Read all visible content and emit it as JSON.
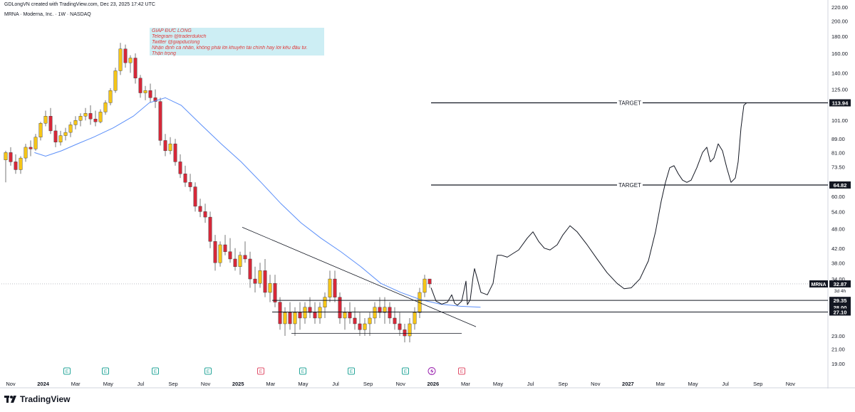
{
  "header": {
    "credit": "GDLongVN created with TradingView.com, Dec 23, 2025 17:42 UTC",
    "symbol_line": "MRNA · Moderna, Inc. · 1W · NASDAQ",
    "brand": "TradingView"
  },
  "annotation": {
    "lines": [
      "GIÁP ĐỨC LONG",
      "Telegram @traderdukich",
      "Twitter @giapduclong",
      "Nhận định cá nhân, không phải lời khuyên tài chính hay lời kêu đầu tư.",
      "Thận trọng"
    ]
  },
  "chart_data": {
    "type": "candlestick",
    "symbol": "MRNA",
    "interval": "1W",
    "y_scale": "log",
    "ylim": [
      17.5,
      222
    ],
    "y_ticks": [
      "220.00",
      "200.00",
      "180.00",
      "160.00",
      "140.00",
      "125.00",
      "113.94",
      "101.00",
      "89.00",
      "81.00",
      "73.50",
      "64.82",
      "60.00",
      "54.00",
      "48.00",
      "42.00",
      "38.00",
      "34.00",
      "32.87",
      "29.35",
      "28.00",
      "27.10",
      "23.00",
      "21.00",
      "19.00"
    ],
    "x_ticks": [
      "Nov",
      "2024",
      "Mar",
      "May",
      "Jul",
      "Sep",
      "Nov",
      "2025",
      "Mar",
      "May",
      "Jul",
      "Sep",
      "Nov",
      "2026",
      "Mar",
      "May",
      "Jul",
      "Sep",
      "Nov",
      "2027",
      "Mar",
      "May",
      "Jul",
      "Sep",
      "Nov"
    ],
    "colors": {
      "up": "#f5c518",
      "down": "#d62839",
      "ma": "#5b8ff9",
      "line": "#131722"
    },
    "price_labels": [
      {
        "label": "MRNA",
        "value": 32.87,
        "sub": "3d 4h"
      },
      {
        "label": "",
        "value": 113.94
      },
      {
        "label": "",
        "value": 64.82
      },
      {
        "label": "",
        "value": 29.35
      },
      {
        "label": "",
        "value": 28.0
      },
      {
        "label": "",
        "value": 27.1
      }
    ],
    "targets": [
      {
        "label": "TARGET",
        "value": 113.94
      },
      {
        "label": "TARGET",
        "value": 64.82
      }
    ],
    "levels": [
      29.35,
      27.1
    ],
    "earnings_markers": [
      "E",
      "E",
      "E",
      "E",
      "E",
      "E",
      "E",
      "E",
      "E"
    ],
    "candles": [
      [
        77,
        82,
        66,
        81
      ],
      [
        81,
        84,
        74,
        76
      ],
      [
        76,
        80,
        70,
        72
      ],
      [
        72,
        79,
        70,
        78
      ],
      [
        78,
        86,
        76,
        84
      ],
      [
        84,
        88,
        79,
        83
      ],
      [
        83,
        92,
        82,
        90
      ],
      [
        90,
        100,
        88,
        99
      ],
      [
        99,
        108,
        97,
        104
      ],
      [
        104,
        110,
        92,
        94
      ],
      [
        94,
        98,
        84,
        87
      ],
      [
        87,
        94,
        85,
        91
      ],
      [
        91,
        96,
        88,
        93
      ],
      [
        93,
        100,
        90,
        98
      ],
      [
        98,
        104,
        95,
        101
      ],
      [
        101,
        106,
        97,
        104
      ],
      [
        104,
        110,
        101,
        106
      ],
      [
        106,
        112,
        98,
        102
      ],
      [
        102,
        108,
        97,
        100
      ],
      [
        100,
        109,
        99,
        107
      ],
      [
        107,
        116,
        105,
        114
      ],
      [
        114,
        126,
        112,
        124
      ],
      [
        124,
        145,
        122,
        142
      ],
      [
        142,
        172,
        138,
        165
      ],
      [
        165,
        170,
        145,
        150
      ],
      [
        150,
        158,
        140,
        155
      ],
      [
        155,
        160,
        130,
        135
      ],
      [
        135,
        138,
        118,
        122
      ],
      [
        122,
        128,
        116,
        124
      ],
      [
        124,
        130,
        114,
        118
      ],
      [
        118,
        125,
        110,
        115
      ],
      [
        115,
        118,
        85,
        88
      ],
      [
        88,
        92,
        79,
        82
      ],
      [
        82,
        90,
        80,
        86
      ],
      [
        86,
        89,
        74,
        76
      ],
      [
        76,
        80,
        68,
        70
      ],
      [
        70,
        74,
        64,
        66
      ],
      [
        66,
        70,
        62,
        64
      ],
      [
        64,
        66,
        54,
        56
      ],
      [
        56,
        59,
        52,
        54
      ],
      [
        54,
        57,
        50,
        52
      ],
      [
        52,
        54,
        42,
        44
      ],
      [
        44,
        46,
        36,
        38
      ],
      [
        38,
        44,
        37,
        43
      ],
      [
        43,
        46,
        40,
        41
      ],
      [
        41,
        45,
        38,
        39
      ],
      [
        39,
        42,
        36,
        37
      ],
      [
        37,
        41,
        35,
        40
      ],
      [
        40,
        44,
        38,
        39
      ],
      [
        39,
        41,
        32,
        34
      ],
      [
        34,
        37,
        31,
        33
      ],
      [
        33,
        38,
        32,
        36
      ],
      [
        36,
        39,
        30,
        31
      ],
      [
        31,
        35,
        29,
        33
      ],
      [
        33,
        35,
        28,
        29
      ],
      [
        29,
        30,
        24,
        25
      ],
      [
        25,
        28,
        23,
        27
      ],
      [
        27,
        29,
        24,
        25
      ],
      [
        25,
        28,
        23,
        27
      ],
      [
        27,
        29,
        24,
        26
      ],
      [
        26,
        29,
        25,
        28
      ],
      [
        28,
        30,
        26,
        27
      ],
      [
        27,
        29,
        25,
        26
      ],
      [
        26,
        29,
        25,
        28
      ],
      [
        28,
        31,
        26,
        30
      ],
      [
        30,
        36,
        29,
        34
      ],
      [
        34,
        36,
        29,
        30
      ],
      [
        30,
        31,
        25,
        26
      ],
      [
        26,
        28,
        24,
        27
      ],
      [
        27,
        29,
        25,
        26
      ],
      [
        26,
        28,
        24,
        25
      ],
      [
        25,
        27,
        23,
        24
      ],
      [
        24,
        26,
        23,
        25
      ],
      [
        25,
        27,
        23,
        26
      ],
      [
        26,
        29,
        25,
        28
      ],
      [
        28,
        30,
        26,
        27
      ],
      [
        27,
        30,
        25,
        28
      ],
      [
        28,
        29,
        25,
        26
      ],
      [
        26,
        28,
        24,
        25
      ],
      [
        25,
        27,
        23,
        24
      ],
      [
        24,
        25,
        22,
        23
      ],
      [
        23,
        26,
        22,
        25
      ],
      [
        25,
        28,
        24,
        27
      ],
      [
        27,
        32,
        26,
        31
      ],
      [
        31,
        35,
        30,
        34
      ],
      [
        34,
        34,
        32,
        32.87
      ]
    ],
    "ma": [
      [
        0.36,
        81
      ],
      [
        0.5,
        79
      ],
      [
        0.7,
        82
      ],
      [
        0.9,
        86
      ],
      [
        1.1,
        90
      ],
      [
        1.35,
        96
      ],
      [
        1.6,
        104
      ],
      [
        1.8,
        114
      ],
      [
        2.0,
        118
      ],
      [
        2.2,
        112
      ],
      [
        2.45,
        98
      ],
      [
        2.7,
        86
      ],
      [
        2.95,
        76
      ],
      [
        3.2,
        66
      ],
      [
        3.45,
        57
      ],
      [
        3.7,
        50
      ],
      [
        3.95,
        45
      ],
      [
        4.2,
        41
      ],
      [
        4.45,
        37
      ],
      [
        4.7,
        33
      ],
      [
        4.95,
        31
      ],
      [
        5.2,
        29.5
      ],
      [
        5.45,
        28.6
      ],
      [
        5.7,
        28.2
      ],
      [
        5.95,
        28.0
      ]
    ],
    "trendline": {
      "from": [
        340,
        48.5
      ],
      "to": [
        668,
        24.5
      ]
    },
    "base_line": {
      "from": [
        409,
        23.4
      ],
      "to": [
        648,
        23.4
      ]
    },
    "projection": [
      [
        605,
        32
      ],
      [
        612,
        29.2
      ],
      [
        620,
        28.6
      ],
      [
        628,
        29.0
      ],
      [
        634,
        30.5
      ],
      [
        638,
        28.8
      ],
      [
        642,
        28.4
      ],
      [
        648,
        29.2
      ],
      [
        654,
        33.5
      ],
      [
        656,
        28.5
      ],
      [
        660,
        29.5
      ],
      [
        664,
        34.5
      ],
      [
        666,
        36.5
      ],
      [
        670,
        34
      ],
      [
        675,
        31
      ],
      [
        684,
        30.5
      ],
      [
        692,
        33
      ],
      [
        698,
        40
      ],
      [
        704,
        40
      ],
      [
        712,
        39.5
      ],
      [
        720,
        40.5
      ],
      [
        728,
        41.5
      ],
      [
        740,
        45
      ],
      [
        748,
        47
      ],
      [
        756,
        44
      ],
      [
        764,
        42
      ],
      [
        772,
        41.5
      ],
      [
        782,
        43
      ],
      [
        790,
        46
      ],
      [
        800,
        49
      ],
      [
        810,
        47
      ],
      [
        824,
        43
      ],
      [
        838,
        39
      ],
      [
        852,
        35.5
      ],
      [
        866,
        33
      ],
      [
        876,
        31.8
      ],
      [
        886,
        32
      ],
      [
        898,
        34
      ],
      [
        910,
        38.5
      ],
      [
        920,
        47
      ],
      [
        928,
        58
      ],
      [
        934,
        66
      ],
      [
        940,
        73
      ],
      [
        946,
        74
      ],
      [
        952,
        70
      ],
      [
        958,
        67
      ],
      [
        964,
        66
      ],
      [
        970,
        67
      ],
      [
        978,
        73
      ],
      [
        986,
        81
      ],
      [
        992,
        84
      ],
      [
        997,
        76
      ],
      [
        1002,
        78
      ],
      [
        1008,
        86
      ],
      [
        1014,
        82
      ],
      [
        1020,
        73
      ],
      [
        1026,
        66
      ],
      [
        1032,
        68
      ],
      [
        1036,
        76
      ],
      [
        1040,
        96
      ],
      [
        1044,
        112
      ],
      [
        1048,
        114
      ]
    ]
  }
}
